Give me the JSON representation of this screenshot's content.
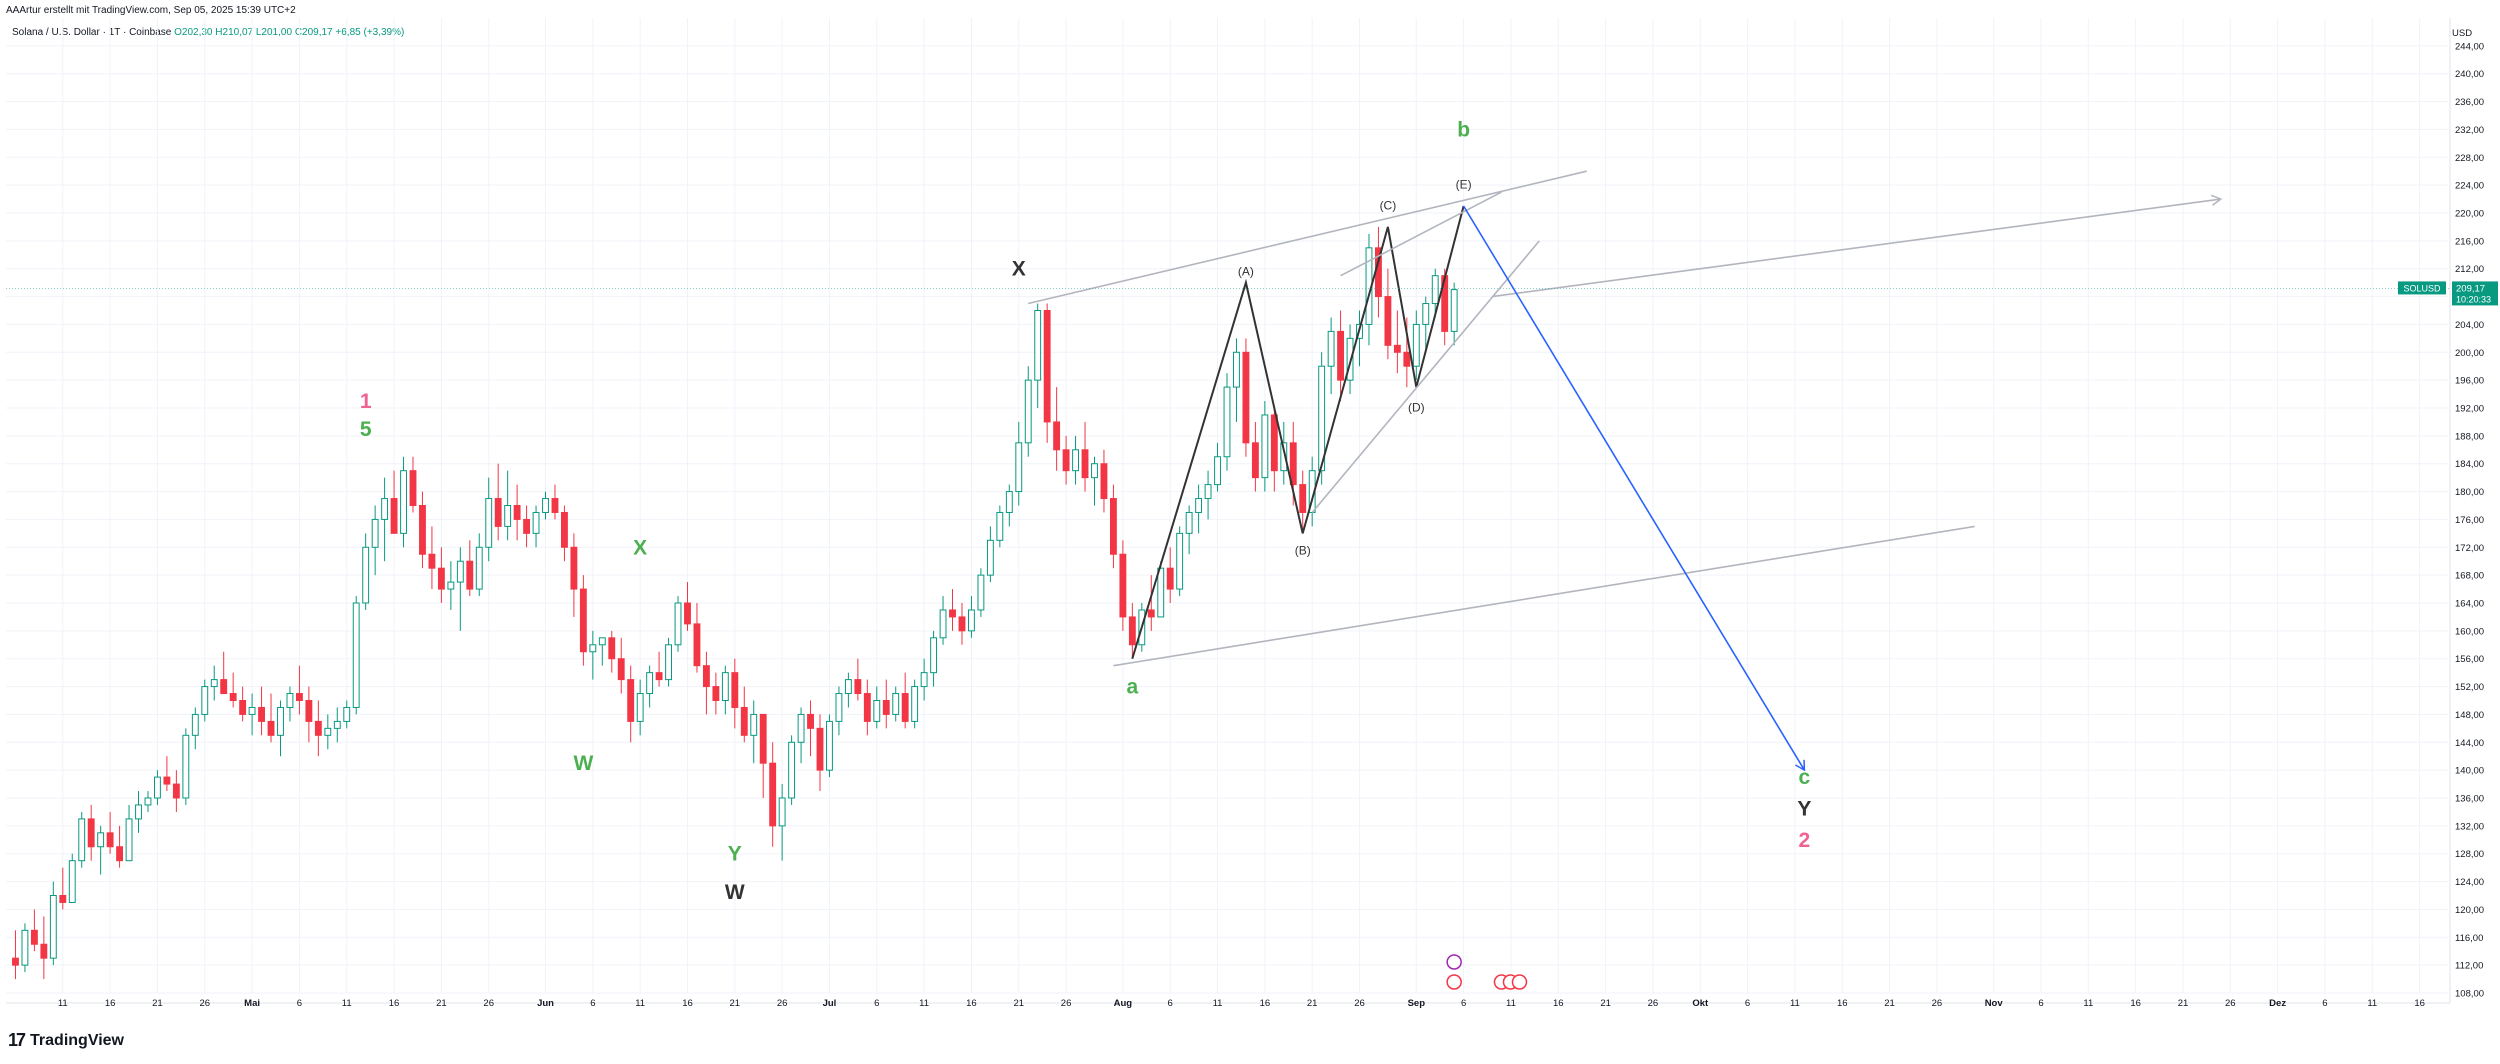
{
  "header": {
    "byline": "AAArtur erstellt mit TradingView.com, Sep 05, 2025 15:39 UTC+2",
    "symbol": "Solana / U.S. Dollar · 1T · Coinbase",
    "ohlc": {
      "open": "O202,30",
      "high": "H210,07",
      "low": "L201,00",
      "close": "C209,17",
      "change": "+6,85 (+3,39%)"
    }
  },
  "brand": {
    "name": "TradingView",
    "icon": "tradingview-logo-icon"
  },
  "colors": {
    "up": "#089981",
    "down": "#f23645",
    "wave_green": "#4caf50",
    "wave_pink": "#f06292",
    "wave_dark": "#333333",
    "projection": "#2962ff",
    "channel": "#b2b5be"
  },
  "chart_data": {
    "type": "candlestick",
    "currency_label": "USD",
    "symbol_tag": "SOLUSD",
    "last_price": "209,17",
    "countdown": "10:20:33",
    "y_range": [
      108,
      248
    ],
    "y_ticks": [
      "244,00",
      "240,00",
      "236,00",
      "232,00",
      "228,00",
      "224,00",
      "220,00",
      "216,00",
      "212,00",
      "208,00",
      "204,00",
      "200,00",
      "196,00",
      "192,00",
      "188,00",
      "184,00",
      "180,00",
      "176,00",
      "172,00",
      "168,00",
      "164,00",
      "160,00",
      "156,00",
      "152,00",
      "148,00",
      "144,00",
      "140,00",
      "136,00",
      "132,00",
      "128,00",
      "124,00",
      "120,00",
      "116,00",
      "112,00",
      "108,00"
    ],
    "x_range": [
      "2025-04-05",
      "2025-12-19"
    ],
    "x_ticks": [
      {
        "d": "2025-04-11",
        "l": "11"
      },
      {
        "d": "2025-04-16",
        "l": "16"
      },
      {
        "d": "2025-04-21",
        "l": "21"
      },
      {
        "d": "2025-04-26",
        "l": "26"
      },
      {
        "d": "2025-05-01",
        "l": "Mai"
      },
      {
        "d": "2025-05-06",
        "l": "6"
      },
      {
        "d": "2025-05-11",
        "l": "11"
      },
      {
        "d": "2025-05-16",
        "l": "16"
      },
      {
        "d": "2025-05-21",
        "l": "21"
      },
      {
        "d": "2025-05-26",
        "l": "26"
      },
      {
        "d": "2025-06-01",
        "l": "Jun"
      },
      {
        "d": "2025-06-06",
        "l": "6"
      },
      {
        "d": "2025-06-11",
        "l": "11"
      },
      {
        "d": "2025-06-16",
        "l": "16"
      },
      {
        "d": "2025-06-21",
        "l": "21"
      },
      {
        "d": "2025-06-26",
        "l": "26"
      },
      {
        "d": "2025-07-01",
        "l": "Jul"
      },
      {
        "d": "2025-07-06",
        "l": "6"
      },
      {
        "d": "2025-07-11",
        "l": "11"
      },
      {
        "d": "2025-07-16",
        "l": "16"
      },
      {
        "d": "2025-07-21",
        "l": "21"
      },
      {
        "d": "2025-07-26",
        "l": "26"
      },
      {
        "d": "2025-08-01",
        "l": "Aug"
      },
      {
        "d": "2025-08-06",
        "l": "6"
      },
      {
        "d": "2025-08-11",
        "l": "11"
      },
      {
        "d": "2025-08-16",
        "l": "16"
      },
      {
        "d": "2025-08-21",
        "l": "21"
      },
      {
        "d": "2025-08-26",
        "l": "26"
      },
      {
        "d": "2025-09-01",
        "l": "Sep"
      },
      {
        "d": "2025-09-06",
        "l": "6"
      },
      {
        "d": "2025-09-11",
        "l": "11"
      },
      {
        "d": "2025-09-16",
        "l": "16"
      },
      {
        "d": "2025-09-21",
        "l": "21"
      },
      {
        "d": "2025-09-26",
        "l": "26"
      },
      {
        "d": "2025-10-01",
        "l": "Okt"
      },
      {
        "d": "2025-10-06",
        "l": "6"
      },
      {
        "d": "2025-10-11",
        "l": "11"
      },
      {
        "d": "2025-10-16",
        "l": "16"
      },
      {
        "d": "2025-10-21",
        "l": "21"
      },
      {
        "d": "2025-10-26",
        "l": "26"
      },
      {
        "d": "2025-11-01",
        "l": "Nov"
      },
      {
        "d": "2025-11-06",
        "l": "6"
      },
      {
        "d": "2025-11-11",
        "l": "11"
      },
      {
        "d": "2025-11-16",
        "l": "16"
      },
      {
        "d": "2025-11-21",
        "l": "21"
      },
      {
        "d": "2025-11-26",
        "l": "26"
      },
      {
        "d": "2025-12-01",
        "l": "Dez"
      },
      {
        "d": "2025-12-06",
        "l": "6"
      },
      {
        "d": "2025-12-11",
        "l": "11"
      },
      {
        "d": "2025-12-16",
        "l": "16"
      }
    ],
    "start_date": "2025-04-06",
    "candles": [
      [
        113,
        117,
        110,
        112
      ],
      [
        112,
        118,
        111,
        117
      ],
      [
        117,
        120,
        114,
        115
      ],
      [
        115,
        119,
        110,
        113
      ],
      [
        113,
        124,
        112,
        122
      ],
      [
        122,
        126,
        120,
        121
      ],
      [
        121,
        128,
        121,
        127
      ],
      [
        127,
        134,
        126,
        133
      ],
      [
        133,
        135,
        127,
        129
      ],
      [
        129,
        132,
        125,
        131
      ],
      [
        131,
        134,
        128,
        129
      ],
      [
        129,
        132,
        126,
        127
      ],
      [
        127,
        135,
        127,
        133
      ],
      [
        133,
        137,
        131,
        135
      ],
      [
        135,
        137,
        134,
        136
      ],
      [
        136,
        140,
        135,
        139
      ],
      [
        139,
        142,
        137,
        138
      ],
      [
        138,
        140,
        134,
        136
      ],
      [
        136,
        146,
        135,
        145
      ],
      [
        145,
        149,
        143,
        148
      ],
      [
        148,
        153,
        147,
        152
      ],
      [
        152,
        155,
        150,
        153
      ],
      [
        153,
        157,
        151,
        151
      ],
      [
        151,
        154,
        149,
        150
      ],
      [
        150,
        152,
        147,
        148
      ],
      [
        148,
        151,
        145,
        149
      ],
      [
        149,
        152,
        145,
        147
      ],
      [
        147,
        151,
        144,
        145
      ],
      [
        145,
        150,
        142,
        149
      ],
      [
        149,
        152,
        147,
        151
      ],
      [
        151,
        155,
        148,
        150
      ],
      [
        150,
        152,
        144,
        147
      ],
      [
        147,
        150,
        142,
        145
      ],
      [
        145,
        148,
        143,
        146
      ],
      [
        146,
        149,
        144,
        147
      ],
      [
        147,
        150,
        146,
        149
      ],
      [
        149,
        165,
        148,
        164
      ],
      [
        164,
        174,
        163,
        172
      ],
      [
        172,
        178,
        168,
        176
      ],
      [
        176,
        182,
        170,
        179
      ],
      [
        179,
        183,
        174,
        174
      ],
      [
        174,
        185,
        172,
        183
      ],
      [
        183,
        185,
        177,
        178
      ],
      [
        178,
        180,
        169,
        171
      ],
      [
        171,
        175,
        166,
        169
      ],
      [
        169,
        172,
        164,
        166
      ],
      [
        166,
        170,
        163,
        167
      ],
      [
        167,
        172,
        160,
        170
      ],
      [
        170,
        173,
        165,
        166
      ],
      [
        166,
        174,
        165,
        172
      ],
      [
        172,
        182,
        170,
        179
      ],
      [
        179,
        184,
        173,
        175
      ],
      [
        175,
        183,
        173,
        178
      ],
      [
        178,
        181,
        173,
        176
      ],
      [
        176,
        178,
        172,
        174
      ],
      [
        174,
        178,
        172,
        177
      ],
      [
        177,
        180,
        176,
        179
      ],
      [
        179,
        181,
        176,
        177
      ],
      [
        177,
        178,
        170,
        172
      ],
      [
        172,
        174,
        162,
        166
      ],
      [
        166,
        168,
        155,
        157
      ],
      [
        157,
        160,
        153,
        158
      ],
      [
        158,
        159,
        155,
        159
      ],
      [
        159,
        160,
        154,
        156
      ],
      [
        156,
        159,
        151,
        153
      ],
      [
        153,
        155,
        144,
        147
      ],
      [
        147,
        153,
        145,
        151
      ],
      [
        151,
        155,
        149,
        154
      ],
      [
        154,
        157,
        152,
        153
      ],
      [
        153,
        159,
        152,
        158
      ],
      [
        158,
        165,
        157,
        164
      ],
      [
        164,
        167,
        160,
        161
      ],
      [
        161,
        164,
        154,
        155
      ],
      [
        155,
        157,
        148,
        152
      ],
      [
        152,
        154,
        148,
        150
      ],
      [
        150,
        155,
        148,
        154
      ],
      [
        154,
        156,
        146,
        149
      ],
      [
        149,
        152,
        144,
        145
      ],
      [
        145,
        150,
        141,
        148
      ],
      [
        148,
        148,
        136,
        141
      ],
      [
        141,
        144,
        129,
        132
      ],
      [
        132,
        138,
        127,
        136
      ],
      [
        136,
        145,
        135,
        144
      ],
      [
        144,
        149,
        141,
        148
      ],
      [
        148,
        150,
        142,
        146
      ],
      [
        146,
        148,
        137,
        140
      ],
      [
        140,
        148,
        139,
        147
      ],
      [
        147,
        152,
        145,
        151
      ],
      [
        151,
        154,
        149,
        153
      ],
      [
        153,
        156,
        150,
        151
      ],
      [
        151,
        153,
        145,
        147
      ],
      [
        147,
        152,
        146,
        150
      ],
      [
        150,
        153,
        146,
        148
      ],
      [
        148,
        152,
        147,
        151
      ],
      [
        151,
        154,
        146,
        147
      ],
      [
        147,
        153,
        146,
        152
      ],
      [
        152,
        156,
        150,
        154
      ],
      [
        154,
        160,
        152,
        159
      ],
      [
        159,
        165,
        158,
        163
      ],
      [
        163,
        166,
        160,
        162
      ],
      [
        162,
        164,
        158,
        160
      ],
      [
        160,
        165,
        159,
        163
      ],
      [
        163,
        169,
        162,
        168
      ],
      [
        168,
        175,
        167,
        173
      ],
      [
        173,
        178,
        172,
        177
      ],
      [
        177,
        181,
        175,
        180
      ],
      [
        180,
        190,
        178,
        187
      ],
      [
        187,
        198,
        185,
        196
      ],
      [
        196,
        207,
        192,
        206
      ],
      [
        206,
        207,
        187,
        190
      ],
      [
        190,
        195,
        183,
        186
      ],
      [
        186,
        188,
        181,
        183
      ],
      [
        183,
        188,
        181,
        186
      ],
      [
        186,
        190,
        180,
        182
      ],
      [
        182,
        185,
        178,
        184
      ],
      [
        184,
        186,
        177,
        179
      ],
      [
        179,
        181,
        169,
        171
      ],
      [
        171,
        173,
        160,
        162
      ],
      [
        162,
        164,
        156,
        158
      ],
      [
        158,
        164,
        157,
        163
      ],
      [
        163,
        168,
        160,
        162
      ],
      [
        162,
        170,
        162,
        169
      ],
      [
        169,
        172,
        164,
        166
      ],
      [
        166,
        175,
        165,
        174
      ],
      [
        174,
        178,
        171,
        177
      ],
      [
        177,
        181,
        174,
        179
      ],
      [
        179,
        183,
        176,
        181
      ],
      [
        181,
        187,
        180,
        185
      ],
      [
        185,
        197,
        183,
        195
      ],
      [
        195,
        202,
        190,
        200
      ],
      [
        200,
        202,
        185,
        187
      ],
      [
        187,
        190,
        180,
        182
      ],
      [
        182,
        193,
        180,
        191
      ],
      [
        191,
        192,
        180,
        183
      ],
      [
        183,
        190,
        181,
        187
      ],
      [
        187,
        190,
        178,
        181
      ],
      [
        181,
        183,
        174,
        177
      ],
      [
        177,
        185,
        175,
        183
      ],
      [
        183,
        200,
        181,
        198
      ],
      [
        198,
        205,
        194,
        203
      ],
      [
        203,
        206,
        193,
        196
      ],
      [
        196,
        204,
        194,
        202
      ],
      [
        202,
        206,
        198,
        204
      ],
      [
        204,
        217,
        201,
        215
      ],
      [
        215,
        218,
        205,
        208
      ],
      [
        208,
        212,
        199,
        201
      ],
      [
        201,
        206,
        197,
        200
      ],
      [
        200,
        205,
        195,
        198
      ],
      [
        198,
        206,
        196,
        204
      ],
      [
        204,
        208,
        200,
        207
      ],
      [
        207,
        212,
        205,
        211
      ],
      [
        211,
        212,
        201,
        203
      ],
      [
        203,
        210,
        201,
        209
      ]
    ],
    "annotations": [
      {
        "text": "1",
        "d": "2025-05-13",
        "p": 192,
        "c": "wave_pink"
      },
      {
        "text": "5",
        "d": "2025-05-13",
        "p": 188,
        "c": "wave_green"
      },
      {
        "text": "X",
        "d": "2025-06-11",
        "p": 171,
        "c": "wave_green"
      },
      {
        "text": "W",
        "d": "2025-06-05",
        "p": 140,
        "c": "wave_green"
      },
      {
        "text": "Y",
        "d": "2025-06-21",
        "p": 127,
        "c": "wave_green"
      },
      {
        "text": "W",
        "d": "2025-06-21",
        "p": 121.5,
        "c": "wave_dark"
      },
      {
        "text": "X",
        "d": "2025-07-21",
        "p": 211,
        "c": "wave_dark"
      },
      {
        "text": "a",
        "d": "2025-08-02",
        "p": 151,
        "c": "wave_green"
      },
      {
        "text": "(A)",
        "d": "2025-08-14",
        "p": 211,
        "c": "wave_dark"
      },
      {
        "text": "(B)",
        "d": "2025-08-20",
        "p": 171,
        "c": "wave_dark"
      },
      {
        "text": "(C)",
        "d": "2025-08-29",
        "p": 220.5,
        "c": "wave_dark"
      },
      {
        "text": "(D)",
        "d": "2025-09-01",
        "p": 191.5,
        "c": "wave_dark"
      },
      {
        "text": "(E)",
        "d": "2025-09-06",
        "p": 223.5,
        "c": "wave_dark"
      },
      {
        "text": "b",
        "d": "2025-09-06",
        "p": 231,
        "c": "wave_green"
      },
      {
        "text": "c",
        "d": "2025-10-12",
        "p": 138,
        "c": "wave_green"
      },
      {
        "text": "Y",
        "d": "2025-10-12",
        "p": 133.5,
        "c": "wave_dark"
      },
      {
        "text": "2",
        "d": "2025-10-12",
        "p": 129,
        "c": "wave_pink"
      }
    ],
    "drawings": [
      {
        "type": "polyline",
        "c": "wave_dark",
        "points": [
          [
            "2025-08-02",
            156
          ],
          [
            "2025-08-14",
            210
          ],
          [
            "2025-08-20",
            174
          ],
          [
            "2025-08-29",
            218
          ],
          [
            "2025-09-01",
            195
          ],
          [
            "2025-09-06",
            221
          ]
        ]
      },
      {
        "type": "line",
        "c": "channel",
        "points": [
          [
            "2025-07-22",
            207
          ],
          [
            "2025-09-19",
            226
          ]
        ]
      },
      {
        "type": "line",
        "c": "channel",
        "points": [
          [
            "2025-07-31",
            155
          ],
          [
            "2025-10-30",
            175
          ]
        ]
      },
      {
        "type": "line",
        "c": "channel",
        "points": [
          [
            "2025-08-21",
            177
          ],
          [
            "2025-09-14",
            216
          ]
        ]
      },
      {
        "type": "line",
        "c": "channel",
        "points": [
          [
            "2025-08-24",
            211
          ],
          [
            "2025-09-10",
            223
          ]
        ]
      },
      {
        "type": "line",
        "c": "channel",
        "arrow": true,
        "points": [
          [
            "2025-09-09",
            208
          ],
          [
            "2025-11-25",
            222
          ]
        ]
      },
      {
        "type": "line",
        "c": "projection",
        "arrow": true,
        "points": [
          [
            "2025-09-06",
            221
          ],
          [
            "2025-10-12",
            140
          ]
        ]
      }
    ]
  }
}
